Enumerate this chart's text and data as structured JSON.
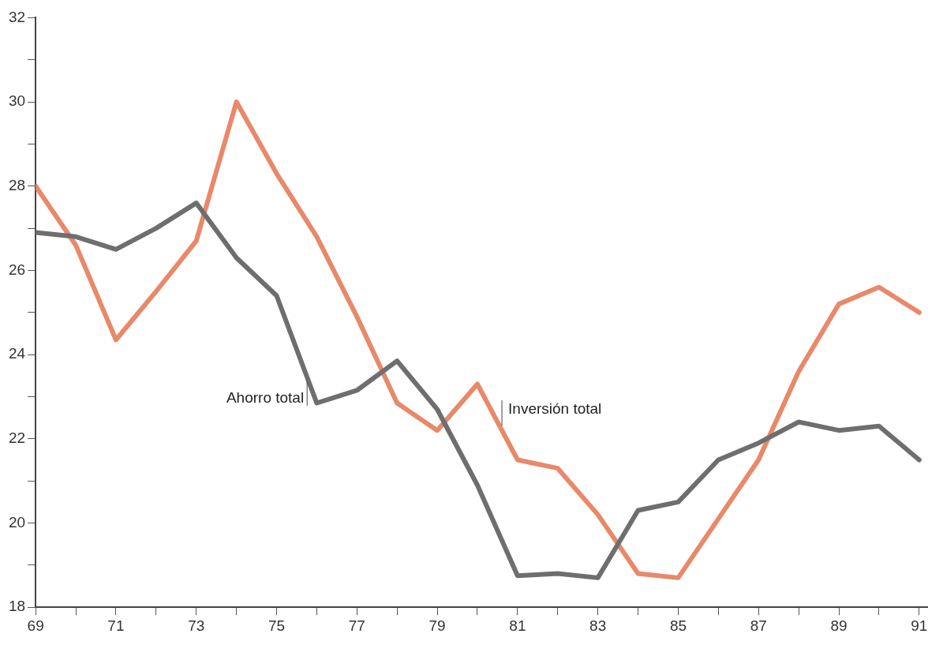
{
  "chart_data": {
    "type": "line",
    "x": [
      69,
      70,
      71,
      72,
      73,
      74,
      75,
      76,
      77,
      78,
      79,
      80,
      81,
      82,
      83,
      84,
      85,
      86,
      87,
      88,
      89,
      90,
      91
    ],
    "series": [
      {
        "name": "Ahorro total",
        "color": "#6e6e6e",
        "values": [
          26.9,
          26.8,
          26.5,
          27.0,
          27.6,
          26.3,
          25.4,
          22.85,
          23.15,
          23.85,
          22.7,
          20.9,
          18.75,
          18.8,
          18.7,
          20.3,
          20.5,
          21.5,
          21.9,
          22.4,
          22.2,
          22.3,
          21.5
        ]
      },
      {
        "name": "Inversión total",
        "color": "#e8896a",
        "values": [
          28.0,
          26.6,
          24.35,
          25.5,
          26.7,
          30.0,
          28.3,
          26.8,
          24.9,
          22.85,
          22.2,
          23.3,
          21.5,
          21.3,
          20.2,
          18.8,
          18.7,
          20.1,
          21.5,
          23.6,
          25.2,
          25.6,
          25.0
        ]
      }
    ],
    "xlim": [
      69,
      91.2
    ],
    "xticks": [
      69,
      {
        "value": 70,
        "label": null
      },
      71,
      {
        "value": 72,
        "label": null
      },
      73,
      {
        "value": 74,
        "label": null
      },
      75,
      {
        "value": 76,
        "label": null
      },
      77,
      {
        "value": 78,
        "label": null
      },
      79,
      {
        "value": 80,
        "label": null
      },
      81,
      {
        "value": 82,
        "label": null
      },
      83,
      {
        "value": 84,
        "label": null
      },
      85,
      {
        "value": 86,
        "label": null
      },
      87,
      {
        "value": 88,
        "label": null
      },
      89,
      {
        "value": 90,
        "label": null
      },
      91
    ],
    "ylim": [
      18,
      32
    ],
    "yticks": [
      18,
      {
        "value": 19,
        "label": null
      },
      20,
      {
        "value": 21,
        "label": null
      },
      22,
      {
        "value": 23,
        "label": null
      },
      24,
      {
        "value": 25,
        "label": null
      },
      26,
      {
        "value": 27,
        "label": null
      },
      28,
      {
        "value": 29,
        "label": null
      },
      30,
      {
        "value": 31,
        "label": null
      },
      32
    ],
    "grid": false,
    "legend": false,
    "marker": "none",
    "line_style": "solid"
  }
}
